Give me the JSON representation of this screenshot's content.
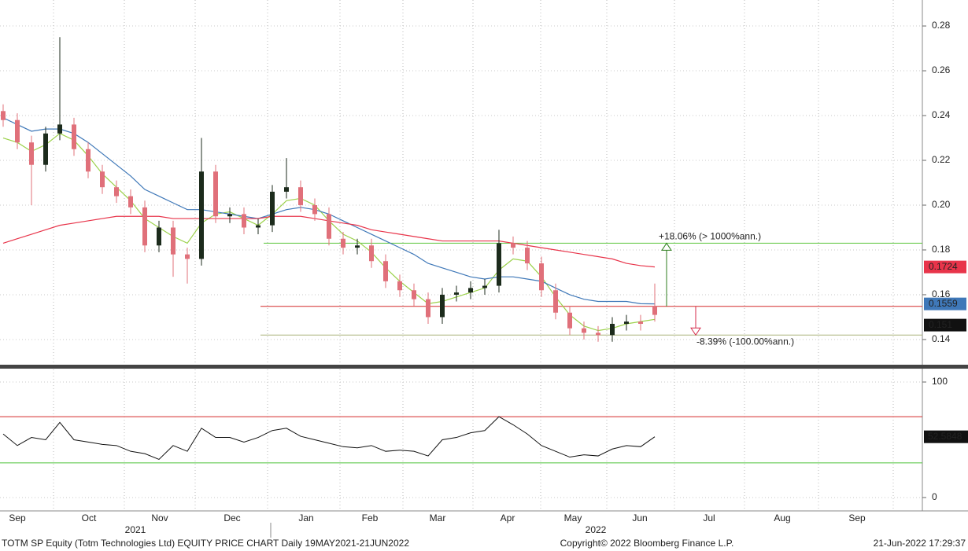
{
  "chart_data": [
    {
      "type": "candlestick",
      "ylim": [
        0.1291,
        0.2916
      ],
      "yticks": [
        0.14,
        0.16,
        0.18,
        {
          "value": 0.2,
          "label": "0.20"
        },
        0.22,
        0.24,
        0.26,
        0.28
      ],
      "grid": true,
      "x_labels": [
        "Sep",
        "Oct",
        "Nov",
        "Dec",
        "Jan",
        "Feb",
        "Mar",
        "Apr",
        "May",
        "Jun",
        "Jul",
        "Aug",
        "Sep"
      ],
      "year_labels": [
        "2021",
        "2022"
      ],
      "up_color": "#1c2b1c",
      "down_color": "#e0707a",
      "open": [
        0.242,
        0.238,
        0.228,
        0.218,
        0.232,
        0.236,
        0.225,
        0.215,
        0.208,
        0.204,
        0.199,
        0.182,
        0.19,
        0.178,
        0.176,
        0.215,
        0.195,
        0.196,
        0.19,
        0.191,
        0.206,
        0.208,
        0.2,
        0.196,
        0.185,
        0.181,
        0.182,
        0.175,
        0.166,
        0.162,
        0.158,
        0.15,
        0.16,
        0.161,
        0.163,
        0.164,
        0.183,
        0.181,
        0.174,
        0.162,
        0.152,
        0.145,
        0.143,
        0.142,
        0.147,
        0.148,
        0.155
      ],
      "high": [
        0.245,
        0.241,
        0.231,
        0.235,
        0.275,
        0.239,
        0.228,
        0.218,
        0.211,
        0.207,
        0.202,
        0.193,
        0.193,
        0.181,
        0.23,
        0.218,
        0.199,
        0.199,
        0.194,
        0.209,
        0.221,
        0.211,
        0.203,
        0.199,
        0.188,
        0.185,
        0.185,
        0.178,
        0.169,
        0.165,
        0.161,
        0.163,
        0.164,
        0.166,
        0.167,
        0.189,
        0.186,
        0.184,
        0.177,
        0.165,
        0.155,
        0.148,
        0.146,
        0.15,
        0.151,
        0.151,
        0.165
      ],
      "low": [
        0.235,
        0.225,
        0.2,
        0.215,
        0.229,
        0.222,
        0.212,
        0.205,
        0.201,
        0.196,
        0.179,
        0.179,
        0.168,
        0.165,
        0.173,
        0.192,
        0.192,
        0.187,
        0.187,
        0.188,
        0.203,
        0.197,
        0.193,
        0.182,
        0.178,
        0.178,
        0.172,
        0.163,
        0.159,
        0.155,
        0.147,
        0.147,
        0.157,
        0.158,
        0.16,
        0.161,
        0.178,
        0.171,
        0.159,
        0.149,
        0.142,
        0.14,
        0.139,
        0.139,
        0.144,
        0.144,
        0.148
      ],
      "close": [
        0.238,
        0.228,
        0.218,
        0.232,
        0.236,
        0.225,
        0.215,
        0.208,
        0.204,
        0.199,
        0.182,
        0.19,
        0.178,
        0.176,
        0.215,
        0.195,
        0.196,
        0.19,
        0.191,
        0.206,
        0.208,
        0.2,
        0.196,
        0.185,
        0.181,
        0.182,
        0.175,
        0.166,
        0.162,
        0.158,
        0.15,
        0.16,
        0.161,
        0.163,
        0.164,
        0.183,
        0.181,
        0.174,
        0.162,
        0.152,
        0.145,
        0.143,
        0.142,
        0.147,
        0.148,
        0.147,
        0.151
      ],
      "series": [
        {
          "color": "#9bd14a",
          "values": [
            0.23,
            0.228,
            0.224,
            0.227,
            0.232,
            0.229,
            0.222,
            0.214,
            0.208,
            0.202,
            0.194,
            0.19,
            0.186,
            0.183,
            0.192,
            0.196,
            0.197,
            0.194,
            0.191,
            0.196,
            0.202,
            0.203,
            0.2,
            0.193,
            0.187,
            0.184,
            0.179,
            0.172,
            0.166,
            0.161,
            0.156,
            0.157,
            0.159,
            0.161,
            0.163,
            0.171,
            0.176,
            0.175,
            0.168,
            0.159,
            0.151,
            0.146,
            0.144,
            0.145,
            0.147,
            0.148,
            0.149
          ]
        },
        {
          "color": "#3f78b8",
          "values": [
            0.239,
            0.236,
            0.233,
            0.234,
            0.234,
            0.232,
            0.228,
            0.223,
            0.218,
            0.213,
            0.207,
            0.204,
            0.201,
            0.198,
            0.198,
            0.197,
            0.196,
            0.195,
            0.194,
            0.196,
            0.198,
            0.199,
            0.198,
            0.196,
            0.193,
            0.19,
            0.187,
            0.184,
            0.181,
            0.178,
            0.174,
            0.172,
            0.17,
            0.168,
            0.167,
            0.168,
            0.168,
            0.167,
            0.166,
            0.163,
            0.16,
            0.158,
            0.157,
            0.157,
            0.157,
            0.156,
            0.1559
          ]
        },
        {
          "color": "#e8344a",
          "values": [
            0.183,
            0.185,
            0.187,
            0.189,
            0.191,
            0.192,
            0.193,
            0.194,
            0.195,
            0.195,
            0.195,
            0.195,
            0.194,
            0.194,
            0.194,
            0.194,
            0.194,
            0.194,
            0.194,
            0.195,
            0.195,
            0.195,
            0.194,
            0.193,
            0.192,
            0.191,
            0.189,
            0.188,
            0.187,
            0.186,
            0.185,
            0.184,
            0.184,
            0.184,
            0.184,
            0.184,
            0.183,
            0.182,
            0.181,
            0.18,
            0.179,
            0.178,
            0.177,
            0.176,
            0.174,
            0.173,
            0.1724
          ]
        }
      ],
      "levels": [
        {
          "value": 0.1548,
          "color": "#d42a2a"
        },
        {
          "value": 0.183,
          "color": "#5cc43c"
        },
        {
          "value": 0.142,
          "color": "#a9b27a"
        }
      ],
      "annotations": [
        {
          "text": "+18.06% (> 1000%ann.)",
          "color": "#2e7d1e"
        },
        {
          "text": "-8.39% (-100.00%ann.)",
          "color": "#d42a4a"
        }
      ]
    },
    {
      "type": "line",
      "ylim": [
        -11.6,
        110.9
      ],
      "yticks": [
        0,
        100
      ],
      "levels": [
        {
          "value": 70,
          "color": "#d42a2a"
        },
        {
          "value": 30,
          "color": "#4fc43c"
        }
      ],
      "series": [
        {
          "color": "#111111",
          "values": [
            55,
            45,
            52,
            50,
            65,
            50,
            48,
            46,
            45,
            40,
            38,
            33,
            45,
            40,
            60,
            52,
            52,
            48,
            52,
            58,
            60,
            53,
            50,
            47,
            44,
            43,
            45,
            40,
            41,
            40,
            36,
            50,
            52,
            56,
            58,
            70,
            63,
            55,
            45,
            40,
            35,
            37,
            36,
            42,
            45,
            44,
            52.5848
          ]
        }
      ]
    }
  ],
  "footer": {
    "left": "TOTM SP Equity (Totm Technologies Ltd) EQUITY PRICE CHART  Daily 19MAY2021-21JUN2022",
    "center": "Copyright© 2022 Bloomberg Finance L.P.",
    "right": "21-Jun-2022 17:29:37"
  }
}
